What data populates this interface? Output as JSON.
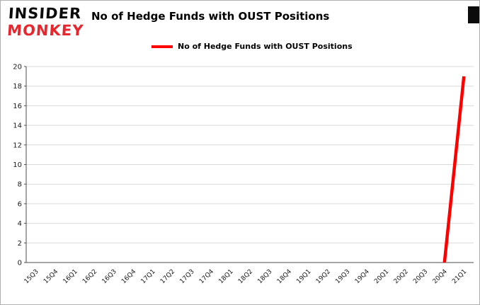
{
  "logo": {
    "line1": "INSIDER",
    "line2": "MONKEY"
  },
  "header": {
    "title": "No of Hedge Funds with OUST Positions"
  },
  "legend": {
    "label": "No of Hedge Funds with OUST Positions",
    "color": "#ff0000"
  },
  "chart_data": {
    "type": "line",
    "title": "No of Hedge Funds with OUST Positions",
    "categories": [
      "15Q3",
      "15Q4",
      "16Q1",
      "16Q2",
      "16Q3",
      "16Q4",
      "17Q1",
      "17Q2",
      "17Q3",
      "17Q4",
      "18Q1",
      "18Q2",
      "18Q3",
      "18Q4",
      "19Q1",
      "19Q2",
      "19Q3",
      "19Q4",
      "20Q1",
      "20Q2",
      "20Q3",
      "20Q4",
      "21Q1"
    ],
    "series": [
      {
        "name": "No of Hedge Funds with OUST Positions",
        "color": "#ff0000",
        "points": [
          {
            "category": "20Q4",
            "value": 0
          },
          {
            "category": "21Q1",
            "value": 19
          }
        ]
      }
    ],
    "ylim": [
      0,
      20
    ],
    "ytick_step": 2,
    "grid": true,
    "legend_position": "top",
    "grid_color": "#d9d9d9",
    "axis_color": "#4d4d4d",
    "tick_label_color": "#1a1a1a"
  }
}
